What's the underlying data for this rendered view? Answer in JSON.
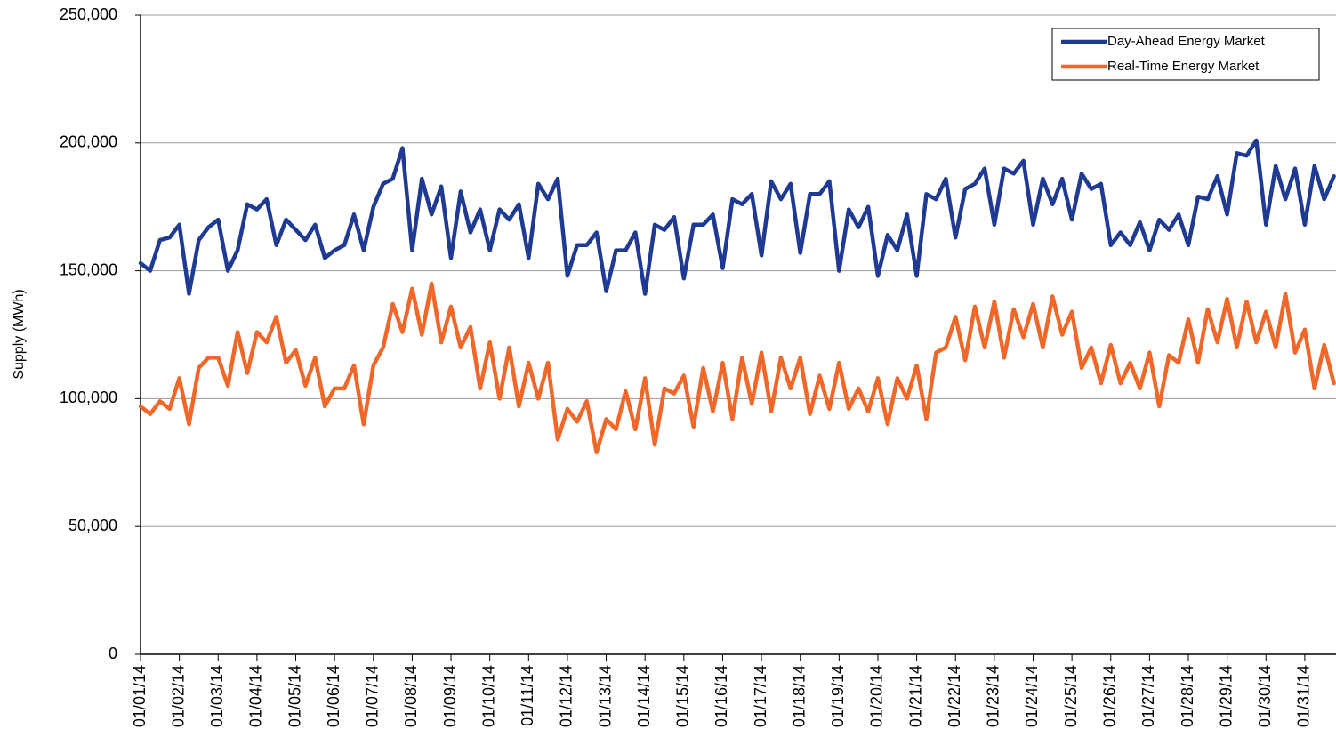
{
  "chart_data": {
    "type": "line",
    "y_label": "Supply (MWh)",
    "categories": [
      "01/01/14",
      null,
      null,
      null,
      "01/02/14",
      null,
      null,
      null,
      "01/03/14",
      null,
      null,
      null,
      "01/04/14",
      null,
      null,
      null,
      "01/05/14",
      null,
      null,
      null,
      "01/06/14",
      null,
      null,
      null,
      "01/07/14",
      null,
      null,
      null,
      "01/08/14",
      null,
      null,
      null,
      "01/09/14",
      null,
      null,
      null,
      "01/10/14",
      null,
      null,
      null,
      "01/11/14",
      null,
      null,
      null,
      "01/12/14",
      null,
      null,
      null,
      "01/13/14",
      null,
      null,
      null,
      "01/14/14",
      null,
      null,
      null,
      "01/15/14",
      null,
      null,
      null,
      "01/16/14",
      null,
      null,
      null,
      "01/17/14",
      null,
      null,
      null,
      "01/18/14",
      null,
      null,
      null,
      "01/19/14",
      null,
      null,
      null,
      "01/20/14",
      null,
      null,
      null,
      "01/21/14",
      null,
      null,
      null,
      "01/22/14",
      null,
      null,
      null,
      "01/23/14",
      null,
      null,
      null,
      "01/24/14",
      null,
      null,
      null,
      "01/25/14",
      null,
      null,
      null,
      "01/26/14",
      null,
      null,
      null,
      "01/27/14",
      null,
      null,
      null,
      "01/28/14",
      null,
      null,
      null,
      "01/29/14",
      null,
      null,
      null,
      "01/30/14",
      null,
      null,
      null,
      "01/31/14",
      null,
      null,
      null
    ],
    "series": [
      {
        "name": "Day-Ahead Energy Market",
        "color": "#1f3a93",
        "values": [
          153000,
          150000,
          162000,
          163000,
          168000,
          141000,
          162000,
          167000,
          170000,
          150000,
          158000,
          176000,
          174000,
          178000,
          160000,
          170000,
          166000,
          162000,
          168000,
          155000,
          158000,
          160000,
          172000,
          158000,
          175000,
          184000,
          186000,
          198000,
          158000,
          186000,
          172000,
          183000,
          155000,
          181000,
          165000,
          174000,
          158000,
          174000,
          170000,
          176000,
          155000,
          184000,
          178000,
          186000,
          148000,
          160000,
          160000,
          165000,
          142000,
          158000,
          158000,
          165000,
          141000,
          168000,
          166000,
          171000,
          147000,
          168000,
          168000,
          172000,
          151000,
          178000,
          176000,
          180000,
          156000,
          185000,
          178000,
          184000,
          157000,
          180000,
          180000,
          185000,
          150000,
          174000,
          167000,
          175000,
          148000,
          164000,
          158000,
          172000,
          148000,
          180000,
          178000,
          186000,
          163000,
          182000,
          184000,
          190000,
          168000,
          190000,
          188000,
          193000,
          168000,
          186000,
          176000,
          186000,
          170000,
          188000,
          182000,
          184000,
          160000,
          165000,
          160000,
          169000,
          158000,
          170000,
          166000,
          172000,
          160000,
          179000,
          178000,
          187000,
          172000,
          196000,
          195000,
          201000,
          168000,
          191000,
          178000,
          190000,
          168000,
          191000,
          178000,
          187000
        ]
      },
      {
        "name": "Real-Time Energy Market",
        "color": "#f0672a",
        "values": [
          97000,
          94000,
          99000,
          96000,
          108000,
          90000,
          112000,
          116000,
          116000,
          105000,
          126000,
          110000,
          126000,
          122000,
          132000,
          114000,
          119000,
          105000,
          116000,
          97000,
          104000,
          104000,
          113000,
          90000,
          113000,
          120000,
          137000,
          126000,
          143000,
          125000,
          145000,
          122000,
          136000,
          120000,
          128000,
          104000,
          122000,
          100000,
          120000,
          97000,
          114000,
          100000,
          114000,
          84000,
          96000,
          91000,
          99000,
          79000,
          92000,
          88000,
          103000,
          88000,
          108000,
          82000,
          104000,
          102000,
          109000,
          89000,
          112000,
          95000,
          114000,
          92000,
          116000,
          98000,
          118000,
          95000,
          116000,
          104000,
          116000,
          94000,
          109000,
          96000,
          114000,
          96000,
          104000,
          95000,
          108000,
          90000,
          108000,
          100000,
          113000,
          92000,
          118000,
          120000,
          132000,
          115000,
          136000,
          120000,
          138000,
          116000,
          135000,
          124000,
          137000,
          120000,
          140000,
          125000,
          134000,
          112000,
          120000,
          106000,
          121000,
          106000,
          114000,
          104000,
          118000,
          97000,
          117000,
          114000,
          131000,
          114000,
          135000,
          122000,
          139000,
          120000,
          138000,
          122000,
          134000,
          120000,
          141000,
          118000,
          127000,
          104000,
          121000,
          106000
        ]
      }
    ],
    "ylim": [
      0,
      250000
    ],
    "yticks": [
      0,
      {
        "value": 50000,
        "label": "50,000"
      },
      {
        "value": 100000,
        "label": "100,000"
      },
      {
        "value": 150000,
        "label": "150,000"
      },
      {
        "value": 200000,
        "label": "200,000"
      },
      {
        "value": 250000,
        "label": "250,000"
      }
    ],
    "grid": true
  }
}
